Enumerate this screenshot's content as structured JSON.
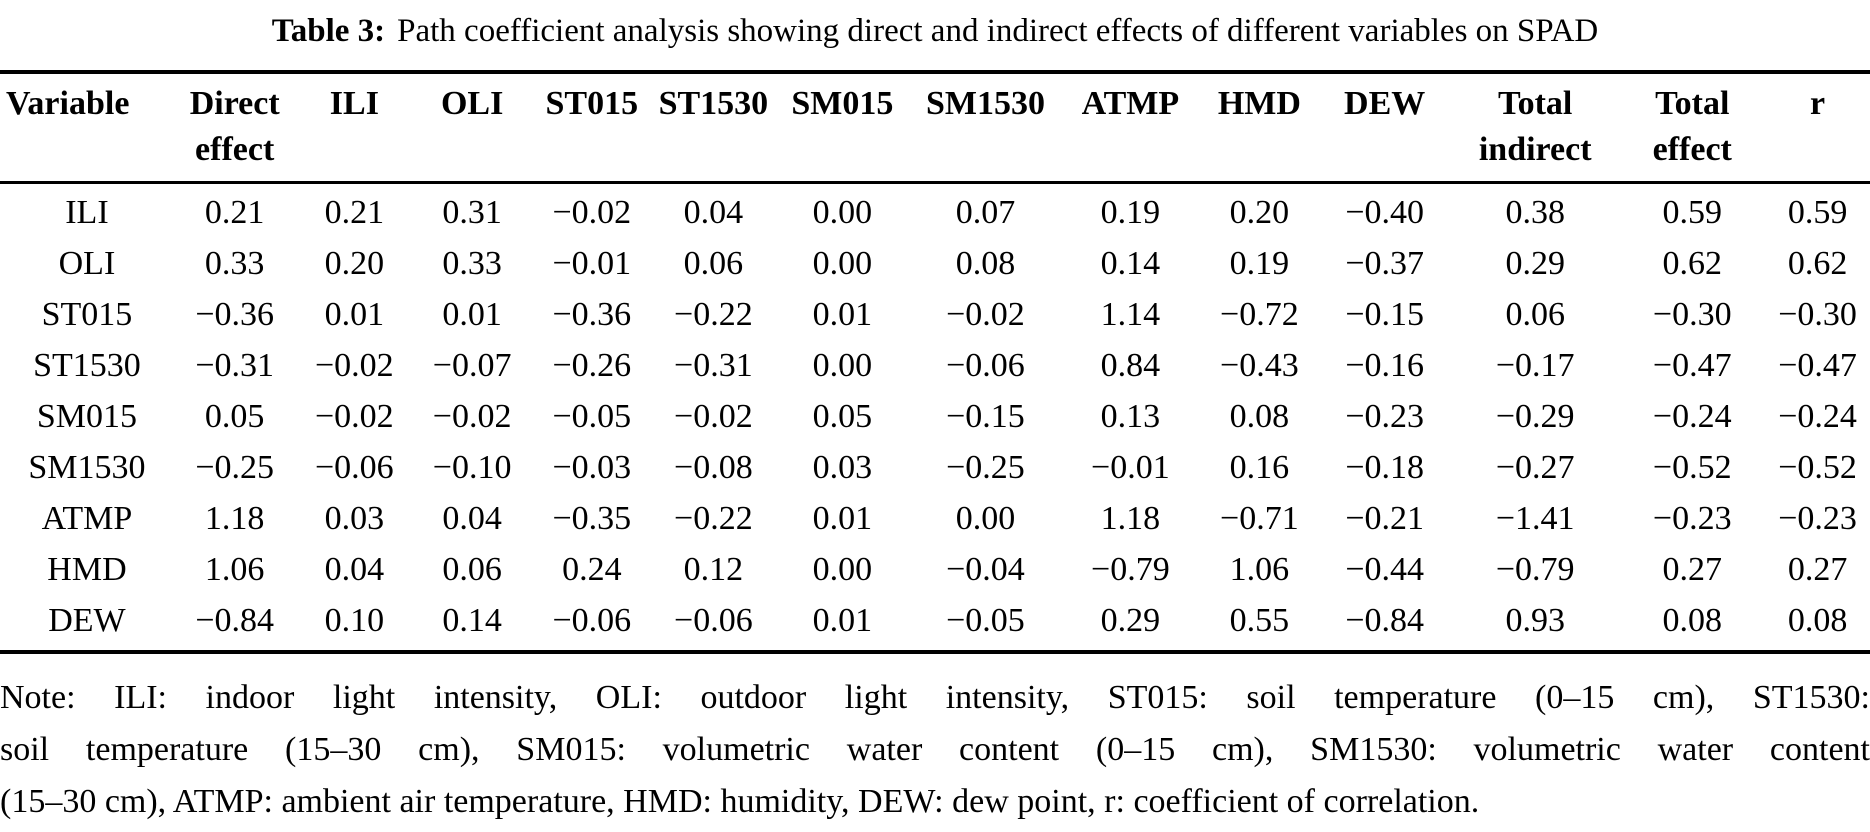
{
  "caption": {
    "label": "Table 3:",
    "text": "Path coefficient analysis showing direct and indirect effects of different variables on SPAD"
  },
  "table": {
    "columns": [
      "Variable",
      "Direct\neffect",
      "ILI",
      "OLI",
      "ST015",
      "ST1530",
      "SM015",
      "SM1530",
      "ATMP",
      "HMD",
      "DEW",
      "Total\nindirect",
      "Total\neffect",
      "r"
    ],
    "column_keys": [
      "variable",
      "direct-effect",
      "ili",
      "oli",
      "st015",
      "st1530",
      "sm015",
      "sm1530",
      "atmp",
      "hmd",
      "dew",
      "total-indirect",
      "total-effect",
      "r"
    ],
    "col_widths_pct": [
      9.3,
      6.5,
      6.3,
      6.3,
      6.5,
      6.5,
      7.3,
      8.0,
      7.5,
      6.3,
      7.1,
      9.0,
      7.8,
      5.6
    ],
    "rows": [
      [
        "ILI",
        "0.21",
        "0.21",
        "0.31",
        "−0.02",
        "0.04",
        "0.00",
        "0.07",
        "0.19",
        "0.20",
        "−0.40",
        "0.38",
        "0.59",
        "0.59"
      ],
      [
        "OLI",
        "0.33",
        "0.20",
        "0.33",
        "−0.01",
        "0.06",
        "0.00",
        "0.08",
        "0.14",
        "0.19",
        "−0.37",
        "0.29",
        "0.62",
        "0.62"
      ],
      [
        "ST015",
        "−0.36",
        "0.01",
        "0.01",
        "−0.36",
        "−0.22",
        "0.01",
        "−0.02",
        "1.14",
        "−0.72",
        "−0.15",
        "0.06",
        "−0.30",
        "−0.30"
      ],
      [
        "ST1530",
        "−0.31",
        "−0.02",
        "−0.07",
        "−0.26",
        "−0.31",
        "0.00",
        "−0.06",
        "0.84",
        "−0.43",
        "−0.16",
        "−0.17",
        "−0.47",
        "−0.47"
      ],
      [
        "SM015",
        "0.05",
        "−0.02",
        "−0.02",
        "−0.05",
        "−0.02",
        "0.05",
        "−0.15",
        "0.13",
        "0.08",
        "−0.23",
        "−0.29",
        "−0.24",
        "−0.24"
      ],
      [
        "SM1530",
        "−0.25",
        "−0.06",
        "−0.10",
        "−0.03",
        "−0.08",
        "0.03",
        "−0.25",
        "−0.01",
        "0.16",
        "−0.18",
        "−0.27",
        "−0.52",
        "−0.52"
      ],
      [
        "ATMP",
        "1.18",
        "0.03",
        "0.04",
        "−0.35",
        "−0.22",
        "0.01",
        "0.00",
        "1.18",
        "−0.71",
        "−0.21",
        "−1.41",
        "−0.23",
        "−0.23"
      ],
      [
        "HMD",
        "1.06",
        "0.04",
        "0.06",
        "0.24",
        "0.12",
        "0.00",
        "−0.04",
        "−0.79",
        "1.06",
        "−0.44",
        "−0.79",
        "0.27",
        "0.27"
      ],
      [
        "DEW",
        "−0.84",
        "0.10",
        "0.14",
        "−0.06",
        "−0.06",
        "0.01",
        "−0.05",
        "0.29",
        "0.55",
        "−0.84",
        "0.93",
        "0.08",
        "0.08"
      ]
    ]
  },
  "note": {
    "lines": [
      "Note: ILI: indoor light intensity, OLI: outdoor light intensity, ST015: soil temperature (0–15 cm), ST1530:",
      "soil temperature (15–30 cm), SM015: volumetric water content (0–15 cm), SM1530: volumetric water content",
      "(15–30 cm), ATMP: ambient air temperature, HMD: humidity, DEW: dew point, r: coefficient of correlation."
    ]
  },
  "colors": {
    "text": "#000000",
    "background": "#ffffff",
    "rule": "#000000"
  }
}
